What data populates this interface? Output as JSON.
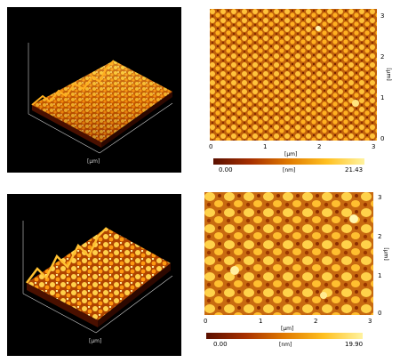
{
  "panels": [
    {
      "map": {
        "x_unit": "[µm]",
        "y_unit": "[µm]",
        "x_ticks": [
          "0",
          "1",
          "2",
          "3"
        ],
        "y_ticks": [
          "0",
          "1",
          "2",
          "3"
        ]
      },
      "colorbar": {
        "min": "0.00",
        "unit": "[nm]",
        "max": "21.43"
      },
      "axis_3d_unit": "[µm]"
    },
    {
      "map": {
        "x_unit": "[µm]",
        "y_unit": "[µm]",
        "x_ticks": [
          "0",
          "1",
          "2",
          "3"
        ],
        "y_ticks": [
          "0",
          "1",
          "2",
          "3"
        ]
      },
      "colorbar": {
        "min": "0.00",
        "unit": "[nm]",
        "max": "19.90"
      },
      "axis_3d_unit": "[µm]"
    }
  ],
  "colors": {
    "dark": "#5a0f00",
    "mid": "#c75a00",
    "light": "#ffd11a",
    "bright": "#fff6b0",
    "panel_bg": "#000000"
  }
}
